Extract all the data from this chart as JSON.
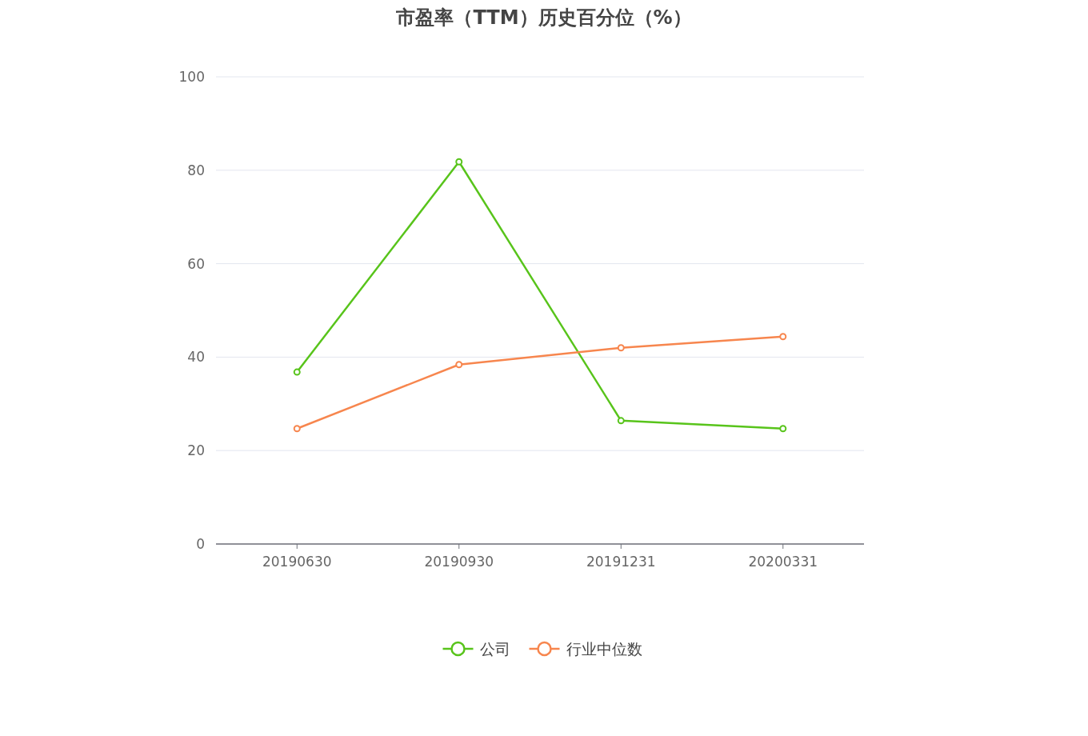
{
  "chart_data": {
    "type": "line",
    "title": "市盈率（TTM）历史百分位（%）",
    "categories": [
      "20190630",
      "20190930",
      "20191231",
      "20200331"
    ],
    "series": [
      {
        "name": "公司",
        "color": "#58c41b",
        "values": [
          36.8,
          81.8,
          26.4,
          24.7
        ]
      },
      {
        "name": "行业中位数",
        "color": "#f7864e",
        "values": [
          24.7,
          38.4,
          42.0,
          44.4
        ]
      }
    ],
    "ylim": [
      0,
      100
    ],
    "yticks": [
      0,
      20,
      40,
      60,
      80,
      100
    ],
    "grid": "y",
    "legend": "bottom",
    "marker": "circle"
  }
}
